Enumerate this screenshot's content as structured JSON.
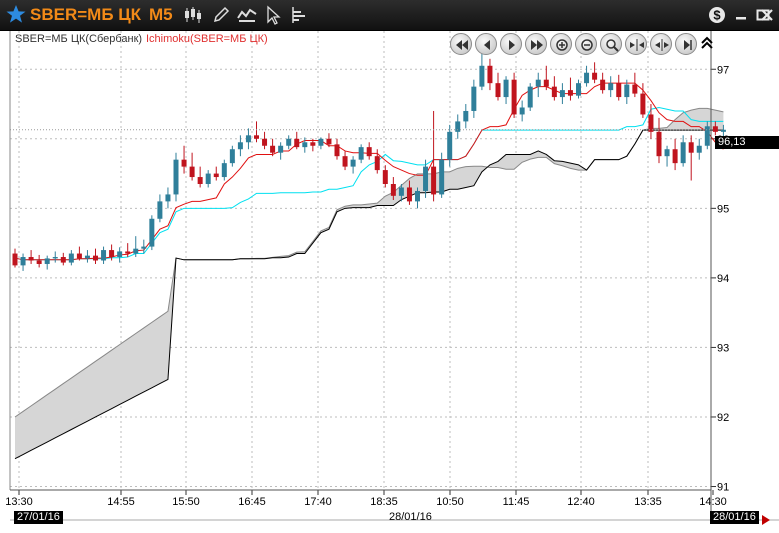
{
  "window": {
    "symbol": "SBER=МБ ЦК",
    "timeframe": "M5"
  },
  "toolbar_icons": [
    "candlestick-icon",
    "pencil-icon",
    "indicator-icon",
    "cursor-icon",
    "objects-icon"
  ],
  "window_buttons": [
    "dollar-icon",
    "minimize-icon",
    "maximize-icon",
    "close-icon"
  ],
  "legend": {
    "instrument": "SBER=МБ ЦК(Сбербанк)",
    "indicator": "Ichimoku(SBER=МБ ЦК)"
  },
  "nav_buttons": [
    "rewind-start-icon",
    "step-back-icon",
    "step-forward-icon",
    "fast-forward-icon",
    "zoom-in-icon",
    "zoom-out-icon",
    "zoom-fit-icon",
    "compress-icon",
    "expand-icon",
    "go-end-icon"
  ],
  "price_tag": "96,13",
  "colors": {
    "up": "#2f7f9a",
    "down": "#c0141e",
    "tenkan": "#e01010",
    "kijun": "#00e0f0",
    "cloud": "#d6d6d6",
    "accent": "#f28a18"
  },
  "chart_data": {
    "type": "candlestick",
    "y_ticks": [
      91,
      92,
      93,
      94,
      95,
      96,
      97
    ],
    "ylim": [
      90.95,
      97.55
    ],
    "x_labels": [
      "13:30",
      "14:55",
      "15:50",
      "16:45",
      "17:40",
      "18:35",
      "10:50",
      "11:45",
      "12:40",
      "13:35",
      "14:30"
    ],
    "date_labels": {
      "start": "27/01/16",
      "middle": "28/01/16",
      "end": "28/01/16"
    },
    "last_price": 96.13,
    "candles": [
      [
        94.35,
        94.42,
        94.15,
        94.18
      ],
      [
        94.18,
        94.35,
        94.1,
        94.3
      ],
      [
        94.3,
        94.4,
        94.2,
        94.25
      ],
      [
        94.25,
        94.33,
        94.15,
        94.2
      ],
      [
        94.2,
        94.32,
        94.12,
        94.28
      ],
      [
        94.28,
        94.38,
        94.22,
        94.3
      ],
      [
        94.3,
        94.36,
        94.18,
        94.22
      ],
      [
        94.22,
        94.4,
        94.18,
        94.35
      ],
      [
        94.35,
        94.45,
        94.25,
        94.28
      ],
      [
        94.28,
        94.4,
        94.22,
        94.32
      ],
      [
        94.32,
        94.42,
        94.2,
        94.25
      ],
      [
        94.25,
        94.45,
        94.2,
        94.4
      ],
      [
        94.4,
        94.48,
        94.25,
        94.3
      ],
      [
        94.3,
        94.44,
        94.22,
        94.38
      ],
      [
        94.38,
        94.5,
        94.3,
        94.35
      ],
      [
        94.35,
        94.6,
        94.3,
        94.42
      ],
      [
        94.42,
        94.55,
        94.35,
        94.45
      ],
      [
        94.45,
        94.9,
        94.4,
        94.85
      ],
      [
        94.85,
        95.2,
        94.8,
        95.1
      ],
      [
        95.1,
        95.3,
        95.0,
        95.2
      ],
      [
        95.2,
        95.8,
        95.1,
        95.7
      ],
      [
        95.7,
        95.9,
        95.5,
        95.6
      ],
      [
        95.6,
        95.8,
        95.4,
        95.45
      ],
      [
        95.45,
        95.6,
        95.3,
        95.35
      ],
      [
        95.35,
        95.55,
        95.3,
        95.5
      ],
      [
        95.5,
        95.6,
        95.4,
        95.45
      ],
      [
        95.45,
        95.7,
        95.4,
        95.65
      ],
      [
        95.65,
        95.9,
        95.6,
        95.85
      ],
      [
        95.85,
        96.05,
        95.75,
        95.95
      ],
      [
        95.95,
        96.15,
        95.85,
        96.05
      ],
      [
        96.05,
        96.25,
        95.95,
        96.0
      ],
      [
        96.0,
        96.1,
        95.85,
        95.9
      ],
      [
        95.9,
        96.0,
        95.75,
        95.8
      ],
      [
        95.8,
        95.95,
        95.7,
        95.9
      ],
      [
        95.9,
        96.05,
        95.85,
        96.0
      ],
      [
        96.0,
        96.1,
        95.85,
        95.88
      ],
      [
        95.88,
        96.02,
        95.8,
        95.95
      ],
      [
        95.95,
        96.0,
        95.82,
        95.9
      ],
      [
        95.9,
        96.02,
        95.85,
        96.0
      ],
      [
        96.0,
        96.08,
        95.88,
        95.92
      ],
      [
        95.92,
        96.0,
        95.7,
        95.75
      ],
      [
        95.75,
        95.82,
        95.55,
        95.6
      ],
      [
        95.6,
        95.75,
        95.5,
        95.7
      ],
      [
        95.7,
        95.92,
        95.65,
        95.88
      ],
      [
        95.88,
        95.95,
        95.7,
        95.75
      ],
      [
        95.75,
        95.85,
        95.5,
        95.55
      ],
      [
        95.55,
        95.62,
        95.3,
        95.35
      ],
      [
        95.35,
        95.45,
        95.12,
        95.18
      ],
      [
        95.18,
        95.35,
        95.1,
        95.3
      ],
      [
        95.3,
        95.4,
        95.05,
        95.1
      ],
      [
        95.1,
        95.3,
        95.0,
        95.25
      ],
      [
        95.25,
        95.7,
        95.15,
        95.6
      ],
      [
        95.6,
        96.4,
        95.1,
        95.2
      ],
      [
        95.2,
        95.8,
        95.15,
        95.7
      ],
      [
        95.7,
        96.2,
        95.6,
        96.1
      ],
      [
        96.1,
        96.35,
        96.0,
        96.25
      ],
      [
        96.25,
        96.5,
        96.15,
        96.4
      ],
      [
        96.4,
        96.85,
        96.3,
        96.75
      ],
      [
        96.75,
        97.25,
        96.7,
        97.05
      ],
      [
        97.05,
        97.15,
        96.7,
        96.8
      ],
      [
        96.8,
        96.95,
        96.55,
        96.6
      ],
      [
        96.6,
        96.9,
        96.5,
        96.85
      ],
      [
        96.85,
        96.95,
        96.3,
        96.35
      ],
      [
        96.35,
        96.55,
        96.25,
        96.45
      ],
      [
        96.45,
        96.8,
        96.4,
        96.75
      ],
      [
        96.75,
        96.95,
        96.6,
        96.85
      ],
      [
        96.85,
        97.05,
        96.7,
        96.75
      ],
      [
        96.75,
        96.9,
        96.55,
        96.6
      ],
      [
        96.6,
        96.8,
        96.5,
        96.7
      ],
      [
        96.7,
        96.88,
        96.55,
        96.62
      ],
      [
        96.62,
        96.85,
        96.58,
        96.8
      ],
      [
        96.8,
        97.05,
        96.75,
        96.95
      ],
      [
        96.95,
        97.1,
        96.8,
        96.85
      ],
      [
        96.85,
        96.95,
        96.65,
        96.7
      ],
      [
        96.7,
        96.9,
        96.6,
        96.8
      ],
      [
        96.8,
        96.92,
        96.55,
        96.6
      ],
      [
        96.6,
        96.85,
        96.5,
        96.78
      ],
      [
        96.78,
        96.95,
        96.6,
        96.65
      ],
      [
        96.65,
        96.8,
        96.3,
        96.35
      ],
      [
        96.35,
        96.5,
        96.0,
        96.1
      ],
      [
        96.1,
        96.3,
        95.65,
        95.75
      ],
      [
        95.75,
        95.9,
        95.6,
        95.85
      ],
      [
        95.85,
        96.0,
        95.55,
        95.65
      ],
      [
        95.65,
        96.05,
        95.6,
        95.95
      ],
      [
        95.95,
        96.05,
        95.4,
        95.8
      ],
      [
        95.8,
        96.0,
        95.7,
        95.9
      ],
      [
        95.9,
        96.25,
        95.85,
        96.18
      ],
      [
        96.18,
        96.25,
        96.05,
        96.1
      ],
      [
        96.1,
        96.2,
        96.02,
        96.13
      ]
    ]
  }
}
